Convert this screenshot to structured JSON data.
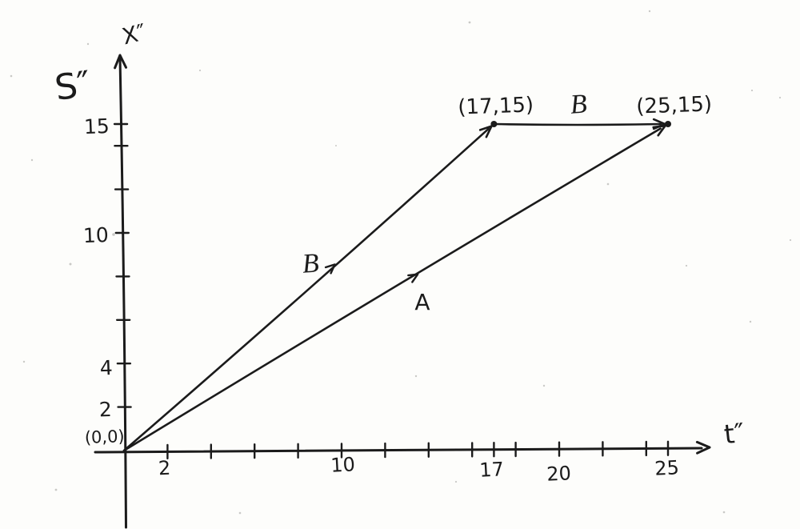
{
  "page": {
    "background": "#fdfdfb",
    "ink_color": "#1b1b1b",
    "speck_color": "#8a8a86"
  },
  "chart_data": {
    "type": "line",
    "frame_label": "S″",
    "xlabel": "t″",
    "ylabel": "X″",
    "origin_label": "(0,0)",
    "xlim": [
      0,
      26
    ],
    "ylim": [
      -4,
      18
    ],
    "grid": false,
    "legend": "none",
    "x_ticks": [
      {
        "value": 2,
        "label": "2"
      },
      {
        "value": 4,
        "label": ""
      },
      {
        "value": 6,
        "label": ""
      },
      {
        "value": 8,
        "label": ""
      },
      {
        "value": 10,
        "label": "10"
      },
      {
        "value": 12,
        "label": ""
      },
      {
        "value": 14,
        "label": ""
      },
      {
        "value": 16,
        "label": ""
      },
      {
        "value": 17,
        "label": "17"
      },
      {
        "value": 18,
        "label": ""
      },
      {
        "value": 20,
        "label": "20"
      },
      {
        "value": 22,
        "label": ""
      },
      {
        "value": 24,
        "label": ""
      },
      {
        "value": 25,
        "label": "25"
      }
    ],
    "y_ticks": [
      {
        "value": 2,
        "label": "2"
      },
      {
        "value": 4,
        "label": "4"
      },
      {
        "value": 6,
        "label": ""
      },
      {
        "value": 8,
        "label": ""
      },
      {
        "value": 10,
        "label": "10"
      },
      {
        "value": 12,
        "label": ""
      },
      {
        "value": 14,
        "label": ""
      },
      {
        "value": 15,
        "label": "15"
      }
    ],
    "series": [
      {
        "name": "worldline-A",
        "label": "A",
        "x": [
          0,
          25
        ],
        "y": [
          0,
          15
        ]
      },
      {
        "name": "worldline-B",
        "label": "B",
        "x": [
          0,
          17
        ],
        "y": [
          0,
          15
        ]
      },
      {
        "name": "worldline-B-segment",
        "label": "B",
        "x": [
          17,
          25
        ],
        "y": [
          15,
          15
        ]
      }
    ],
    "points": [
      {
        "x": 17,
        "y": 15,
        "label": "(17,15)"
      },
      {
        "x": 25,
        "y": 15,
        "label": "(25,15)"
      }
    ]
  }
}
